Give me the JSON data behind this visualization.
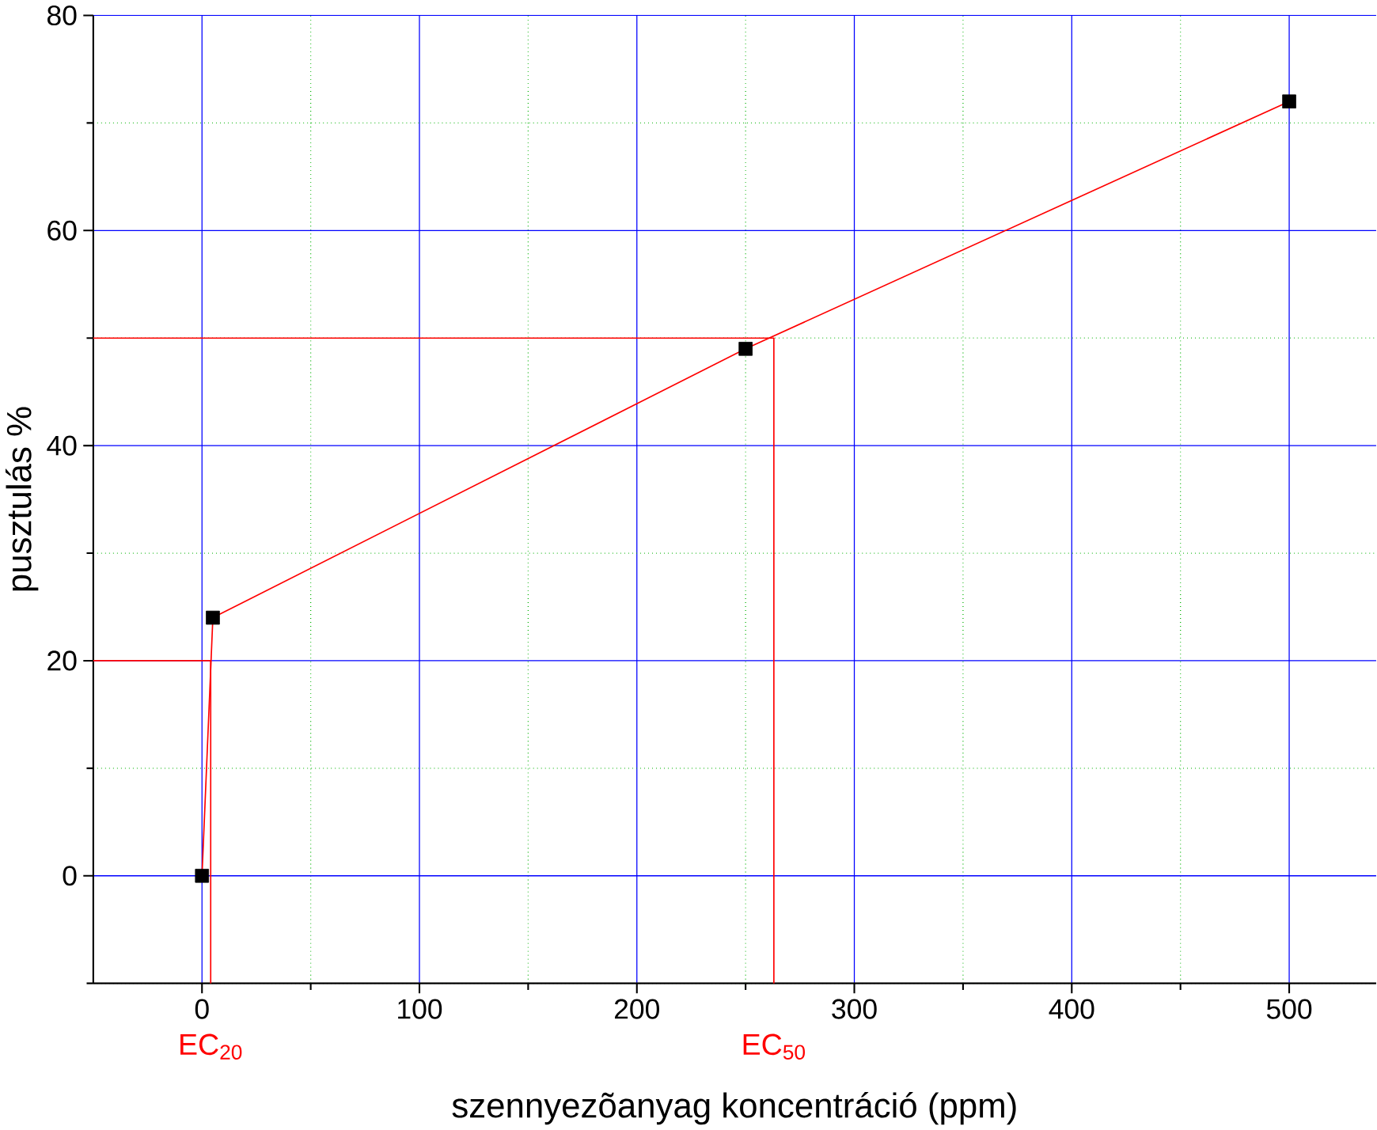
{
  "chart_data": {
    "type": "line",
    "xlabel": "szennyezõanyag koncentráció (ppm)",
    "ylabel": "pusztulás %",
    "x": [
      0,
      5,
      250,
      500
    ],
    "series": [
      {
        "type": "line",
        "color": "#ff0000",
        "values": [
          0,
          24,
          49,
          72
        ],
        "marker": "none"
      },
      {
        "type": "scatter",
        "color": "#000000",
        "values": [
          0,
          24,
          49,
          72
        ],
        "marker": "square"
      },
      {
        "color": "#ff0000",
        "x": [
          -50,
          4,
          4
        ],
        "values": [
          20,
          20,
          -10
        ],
        "marker": "none"
      },
      {
        "color": "#ff0000",
        "x": [
          -50,
          263,
          263
        ],
        "values": [
          50,
          50,
          -10
        ],
        "marker": "none"
      }
    ],
    "xlim": [
      -50,
      540
    ],
    "ylim": [
      -10,
      80
    ],
    "xticks": [
      0,
      {
        "value": 50,
        "label": null
      },
      100,
      {
        "value": 150,
        "label": null
      },
      200,
      {
        "value": 250,
        "label": null
      },
      300,
      {
        "value": 350,
        "label": null
      },
      400,
      {
        "value": 450,
        "label": null
      },
      500
    ],
    "yticks": [
      {
        "value": -10,
        "label": null
      },
      0,
      {
        "value": 10,
        "label": null
      },
      20,
      {
        "value": 30,
        "label": null
      },
      40,
      {
        "value": 50,
        "label": null
      },
      60,
      {
        "value": 70,
        "label": null
      },
      80
    ],
    "grid": true,
    "annotations": [
      {
        "text": "EC$_{20}$",
        "x": 4,
        "y": -10
      },
      {
        "text": "EC$_{50}$",
        "x": 263,
        "y": -10
      }
    ]
  }
}
